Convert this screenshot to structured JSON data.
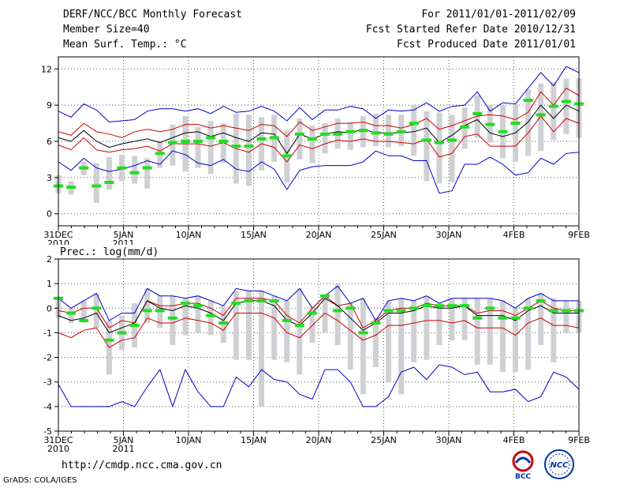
{
  "header": {
    "title": "DERF/NCC/BCC Monthly Forecast",
    "member_size": "Member Size=40",
    "variable": "Mean Surf. Temp.: °C",
    "period": "For 2011/01/01-2011/02/09",
    "fcst_started": "Fcst Started Refer Date 2010/12/31",
    "fcst_produced": "Fcst Produced Date 2011/01/01"
  },
  "footer": {
    "url": "http://cmdp.ncc.cma.gov.cn",
    "credit": "GrADS: COLA/IGES",
    "logo_bcc": "BCC",
    "logo_ncc": "NCC"
  },
  "chart_data": [
    {
      "type": "line",
      "title": "Mean Surf. Temp.: °C",
      "xlim": [
        0,
        40
      ],
      "ylim": [
        -1,
        13
      ],
      "yticks": [
        0,
        3,
        6,
        9,
        12
      ],
      "xticks": [
        {
          "x": 0,
          "label": "31DEC",
          "sub": "2010"
        },
        {
          "x": 5,
          "label": "5JAN",
          "sub": "2011"
        },
        {
          "x": 10,
          "label": "10JAN"
        },
        {
          "x": 15,
          "label": "15JAN"
        },
        {
          "x": 20,
          "label": "20JAN"
        },
        {
          "x": 25,
          "label": "25JAN"
        },
        {
          "x": 30,
          "label": "30JAN"
        },
        {
          "x": 35,
          "label": "4FEB"
        },
        {
          "x": 40,
          "label": "9FEB"
        }
      ],
      "series": [
        {
          "name": "max",
          "color": "#0000cc",
          "values": [
            8.5,
            8.0,
            9.1,
            8.6,
            7.6,
            7.7,
            7.8,
            8.5,
            8.7,
            8.7,
            8.5,
            8.7,
            8.3,
            8.9,
            8.4,
            8.5,
            8.9,
            8.5,
            7.7,
            8.8,
            7.8,
            8.6,
            8.6,
            8.9,
            8.7,
            7.9,
            8.6,
            8.5,
            8.6,
            9.2,
            8.5,
            8.9,
            9.0,
            10.1,
            8.5,
            9.2,
            9.1,
            10.4,
            11.7,
            10.6,
            12.2,
            11.7
          ]
        },
        {
          "name": "upper",
          "color": "#cc0000",
          "values": [
            6.8,
            6.5,
            7.5,
            6.8,
            6.6,
            6.3,
            6.8,
            7.0,
            6.8,
            7.0,
            7.4,
            7.4,
            7.1,
            7.3,
            7.1,
            6.9,
            7.4,
            7.3,
            6.4,
            7.6,
            6.9,
            7.2,
            7.5,
            7.5,
            7.6,
            7.3,
            7.3,
            7.1,
            7.4,
            7.9,
            7.0,
            7.3,
            7.7,
            8.1,
            8.2,
            8.1,
            7.8,
            8.4,
            10.1,
            9.0,
            10.4,
            9.8
          ]
        },
        {
          "name": "mean",
          "color": "#000000",
          "values": [
            6.3,
            6.0,
            6.9,
            6.0,
            5.5,
            5.8,
            6.0,
            6.2,
            5.9,
            6.3,
            6.7,
            6.8,
            6.4,
            6.7,
            6.3,
            6.0,
            6.7,
            6.6,
            5.0,
            6.6,
            6.2,
            6.6,
            6.8,
            6.7,
            7.0,
            6.7,
            6.7,
            6.7,
            6.8,
            7.1,
            5.9,
            6.5,
            7.3,
            7.8,
            6.7,
            6.4,
            6.7,
            7.6,
            9.0,
            7.9,
            9.0,
            8.5
          ]
        },
        {
          "name": "lower",
          "color": "#cc0000",
          "values": [
            5.7,
            5.3,
            6.3,
            5.3,
            5.1,
            5.3,
            5.4,
            5.6,
            5.2,
            5.8,
            5.8,
            5.8,
            5.6,
            5.9,
            5.4,
            5.1,
            5.8,
            5.5,
            4.3,
            5.7,
            5.4,
            5.8,
            6.1,
            6.0,
            6.2,
            6.0,
            6.0,
            5.9,
            5.8,
            6.2,
            4.7,
            5.0,
            6.4,
            6.6,
            5.6,
            5.6,
            5.6,
            6.7,
            8.1,
            6.8,
            7.9,
            7.5
          ]
        },
        {
          "name": "min",
          "color": "#0000cc",
          "values": [
            4.3,
            3.6,
            4.6,
            3.8,
            3.5,
            3.7,
            4.0,
            4.4,
            4.1,
            5.2,
            4.9,
            4.2,
            4.0,
            4.5,
            3.7,
            3.5,
            4.3,
            3.7,
            2.0,
            3.6,
            3.9,
            4.0,
            4.0,
            4.0,
            4.3,
            5.2,
            4.8,
            4.8,
            4.4,
            4.4,
            1.7,
            1.9,
            4.1,
            4.1,
            4.7,
            4.1,
            3.2,
            3.4,
            4.6,
            4.1,
            5.0,
            5.1
          ]
        }
      ],
      "obs": [
        2.3,
        2.2,
        3.8,
        2.3,
        2.6,
        3.8,
        3.4,
        3.8,
        5.0,
        5.9,
        6.0,
        6.0,
        6.3,
        6.0,
        5.6,
        5.6,
        6.2,
        6.3,
        4.8,
        6.6,
        6.2,
        6.6,
        6.6,
        6.8,
        6.9,
        6.7,
        6.6,
        6.8,
        7.5,
        6.1,
        5.9,
        6.1,
        7.2,
        8.3,
        7.4,
        6.8,
        7.5,
        9.4,
        8.2,
        8.9,
        9.3,
        9.1
      ],
      "box_low": [
        1.7,
        1.6,
        3.2,
        0.9,
        2.0,
        2.7,
        2.5,
        2.1,
        3.8,
        4.0,
        3.5,
        3.8,
        3.3,
        4.2,
        2.5,
        2.3,
        3.6,
        4.3,
        2.6,
        4.5,
        4.2,
        5.0,
        5.4,
        5.3,
        5.5,
        5.6,
        5.5,
        5.6,
        4.8,
        2.7,
        2.5,
        2.6,
        5.4,
        6.3,
        5.9,
        4.6,
        4.3,
        4.8,
        5.2,
        6.1,
        6.6,
        6.3
      ],
      "box_high": [
        3.2,
        2.7,
        4.3,
        4.2,
        4.7,
        4.9,
        4.8,
        4.6,
        6.0,
        7.4,
        8.1,
        7.2,
        7.7,
        7.5,
        8.3,
        8.2,
        8.0,
        8.2,
        6.9,
        7.9,
        7.3,
        7.5,
        7.9,
        7.6,
        8.1,
        8.3,
        8.2,
        8.2,
        9.0,
        8.5,
        8.4,
        8.2,
        8.8,
        9.8,
        9.0,
        9.0,
        9.1,
        10.3,
        10.8,
        10.9,
        11.2,
        11.2
      ]
    },
    {
      "type": "line",
      "title": "Prec.: log(mm/d)",
      "xlim": [
        0,
        40
      ],
      "ylim": [
        -5,
        2
      ],
      "yticks": [
        -5,
        -4,
        -3,
        -2,
        -1,
        0,
        1,
        2
      ],
      "xticks": [
        {
          "x": 0,
          "label": "31DEC",
          "sub": "2010"
        },
        {
          "x": 5,
          "label": "5JAN",
          "sub": "2011"
        },
        {
          "x": 10,
          "label": "10JAN"
        },
        {
          "x": 15,
          "label": "15JAN"
        },
        {
          "x": 20,
          "label": "20JAN"
        },
        {
          "x": 25,
          "label": "25JAN"
        },
        {
          "x": 30,
          "label": "30JAN"
        },
        {
          "x": 35,
          "label": "4FEB"
        },
        {
          "x": 40,
          "label": "9FEB"
        }
      ],
      "series": [
        {
          "name": "max",
          "color": "#0000cc",
          "values": [
            0.4,
            0.0,
            0.3,
            0.6,
            -0.5,
            -0.2,
            -0.2,
            0.8,
            0.5,
            0.5,
            0.4,
            0.5,
            0.3,
            0.1,
            0.8,
            0.7,
            0.7,
            0.5,
            0.3,
            0.8,
            0.0,
            0.5,
            0.9,
            0.2,
            0.4,
            -0.5,
            0.3,
            0.4,
            0.3,
            0.5,
            0.2,
            0.4,
            0.4,
            0.4,
            0.4,
            0.3,
            0.0,
            0.4,
            0.6,
            0.3,
            0.3,
            0.3
          ]
        },
        {
          "name": "upper",
          "color": "#cc0000",
          "values": [
            -0.1,
            -0.2,
            0.0,
            0.0,
            -0.8,
            -0.5,
            -0.6,
            0.3,
            0.1,
            0.1,
            0.2,
            0.2,
            0.0,
            -0.3,
            0.4,
            0.4,
            0.4,
            0.3,
            -0.3,
            -0.6,
            0.0,
            0.5,
            0.1,
            0.2,
            -0.8,
            -0.5,
            -0.1,
            0.0,
            0.0,
            0.2,
            0.1,
            0.1,
            0.1,
            -0.2,
            -0.1,
            -0.1,
            -0.3,
            0.0,
            0.3,
            0.0,
            -0.1,
            -0.1
          ]
        },
        {
          "name": "mean",
          "color": "#000000",
          "values": [
            -0.3,
            -0.5,
            -0.4,
            -0.2,
            -1.0,
            -0.8,
            -0.6,
            0.3,
            0.0,
            -0.1,
            0.1,
            0.0,
            -0.2,
            -0.5,
            0.2,
            0.3,
            0.3,
            0.1,
            -0.5,
            -0.7,
            -0.2,
            0.4,
            0.1,
            -0.4,
            -0.9,
            -0.6,
            -0.2,
            -0.2,
            -0.1,
            0.1,
            0.0,
            0.0,
            0.1,
            -0.3,
            -0.3,
            -0.3,
            -0.5,
            -0.1,
            0.1,
            -0.2,
            -0.2,
            -0.2
          ]
        },
        {
          "name": "lower",
          "color": "#cc0000",
          "values": [
            -1.0,
            -1.2,
            -0.9,
            -0.8,
            -1.6,
            -1.3,
            -1.2,
            -0.4,
            -0.6,
            -0.6,
            -0.4,
            -0.5,
            -0.6,
            -0.9,
            -0.2,
            -0.2,
            -0.2,
            -0.4,
            -1.0,
            -1.2,
            -0.7,
            -0.2,
            -0.5,
            -0.9,
            -1.3,
            -1.1,
            -0.7,
            -0.7,
            -0.6,
            -0.5,
            -0.5,
            -0.6,
            -0.5,
            -0.8,
            -0.8,
            -0.8,
            -1.1,
            -0.6,
            -0.4,
            -0.7,
            -0.7,
            -0.8
          ]
        },
        {
          "name": "min",
          "color": "#0000cc",
          "values": [
            -3.1,
            -4.0,
            -4.0,
            -4.0,
            -4.0,
            -3.8,
            -4.0,
            -3.2,
            -2.5,
            -4.0,
            -2.5,
            -3.4,
            -4.0,
            -4.0,
            -2.8,
            -3.2,
            -2.5,
            -2.9,
            -3.0,
            -3.5,
            -3.7,
            -2.5,
            -2.5,
            -3.0,
            -4.0,
            -4.0,
            -3.6,
            -2.6,
            -2.4,
            -2.9,
            -2.3,
            -2.4,
            -2.7,
            -2.6,
            -3.4,
            -3.4,
            -3.3,
            -3.8,
            -3.6,
            -2.6,
            -2.8,
            -3.3
          ]
        }
      ],
      "obs": [
        0.4,
        -0.2,
        -0.5,
        0.0,
        -1.3,
        -1.0,
        -0.7,
        -0.1,
        -0.1,
        -0.4,
        0.2,
        0.1,
        -0.3,
        -0.6,
        0.2,
        0.3,
        0.3,
        0.3,
        -0.5,
        -0.7,
        -0.2,
        0.5,
        -0.1,
        0.0,
        -1.0,
        -0.6,
        -0.1,
        -0.1,
        0.0,
        0.1,
        0.1,
        0.1,
        0.1,
        -0.4,
        0.0,
        -0.4,
        -0.4,
        0.0,
        0.3,
        -0.1,
        -0.1,
        -0.1
      ],
      "box_low": [
        -0.4,
        -0.6,
        -0.6,
        -0.8,
        -2.7,
        -1.7,
        -1.6,
        -0.6,
        -0.8,
        -1.5,
        -1.1,
        -1.0,
        -1.1,
        -1.4,
        -2.1,
        -2.1,
        -4.0,
        -2.1,
        -2.2,
        -2.7,
        -1.4,
        -1.0,
        -1.5,
        -2.5,
        -3.5,
        -2.4,
        -3.0,
        -3.5,
        -2.2,
        -2.1,
        -1.5,
        -1.3,
        -1.3,
        -2.3,
        -2.3,
        -2.6,
        -2.6,
        -2.5,
        -1.5,
        -2.2,
        -1.0,
        -1.0
      ],
      "box_high": [
        0.4,
        0.0,
        0.3,
        0.6,
        -0.5,
        -0.3,
        0.2,
        0.8,
        0.5,
        0.5,
        0.4,
        0.5,
        0.3,
        0.1,
        0.7,
        0.7,
        0.7,
        0.5,
        0.3,
        0.8,
        0.0,
        0.5,
        1.0,
        0.2,
        0.4,
        -0.4,
        0.3,
        0.4,
        0.3,
        0.5,
        0.2,
        0.4,
        0.4,
        0.4,
        0.4,
        0.3,
        0.0,
        0.4,
        0.6,
        0.4,
        0.3,
        0.3
      ]
    }
  ]
}
